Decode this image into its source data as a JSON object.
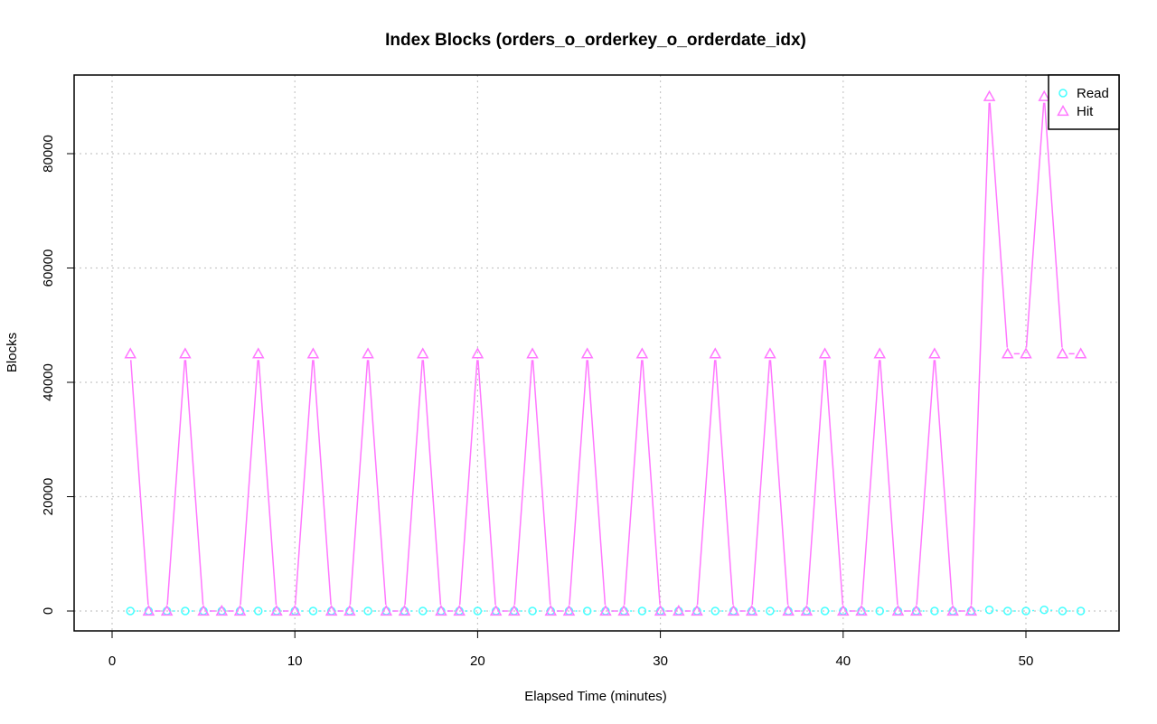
{
  "chart_data": {
    "type": "line",
    "title": "Index Blocks (orders_o_orderkey_o_orderdate_idx)",
    "xlabel": "Elapsed Time (minutes)",
    "ylabel": "Blocks",
    "xlim": [
      0,
      55
    ],
    "ylim": [
      -3000,
      94000
    ],
    "x_ticks": [
      0,
      10,
      20,
      30,
      40,
      50
    ],
    "y_ticks": [
      0,
      20000,
      40000,
      60000,
      80000
    ],
    "grid": true,
    "legend_position": "top-right",
    "x": [
      1,
      2,
      3,
      4,
      5,
      6,
      7,
      8,
      9,
      10,
      11,
      12,
      13,
      14,
      15,
      16,
      17,
      18,
      19,
      20,
      21,
      22,
      23,
      24,
      25,
      26,
      27,
      28,
      29,
      30,
      31,
      32,
      33,
      34,
      35,
      36,
      37,
      38,
      39,
      40,
      41,
      42,
      43,
      44,
      45,
      46,
      47,
      48,
      49,
      50,
      51,
      52,
      53
    ],
    "series": [
      {
        "name": "Read",
        "color": "#44ffff",
        "marker": "circle",
        "line": "dotted",
        "values": [
          0,
          0,
          0,
          0,
          0,
          0,
          0,
          0,
          0,
          0,
          0,
          0,
          0,
          0,
          0,
          0,
          0,
          0,
          0,
          0,
          0,
          0,
          0,
          0,
          0,
          0,
          0,
          0,
          0,
          0,
          0,
          0,
          0,
          0,
          0,
          0,
          0,
          0,
          0,
          0,
          0,
          0,
          0,
          0,
          0,
          0,
          0,
          200,
          0,
          0,
          200,
          0,
          0
        ]
      },
      {
        "name": "Hit",
        "color": "#ff77ff",
        "marker": "triangle",
        "line": "solid",
        "values": [
          45000,
          0,
          0,
          45000,
          0,
          0,
          0,
          45000,
          0,
          0,
          45000,
          0,
          0,
          45000,
          0,
          0,
          45000,
          0,
          0,
          45000,
          0,
          0,
          45000,
          0,
          0,
          45000,
          0,
          0,
          45000,
          0,
          0,
          0,
          45000,
          0,
          0,
          45000,
          0,
          0,
          45000,
          0,
          0,
          45000,
          0,
          0,
          45000,
          0,
          0,
          90000,
          45000,
          45000,
          90000,
          45000,
          45000
        ]
      }
    ]
  }
}
